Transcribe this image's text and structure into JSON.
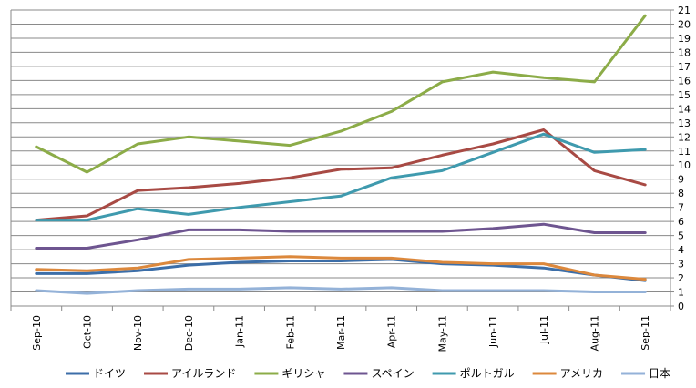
{
  "chart_data": {
    "type": "line",
    "title": "",
    "xlabel": "",
    "ylabel": "",
    "ylim": [
      0,
      21
    ],
    "y_ticks": [
      "0",
      "1",
      "2",
      "3",
      "4",
      "5",
      "6",
      "7",
      "8",
      "9",
      "10",
      "11",
      "12",
      "13",
      "14",
      "15",
      "16",
      "17",
      "18",
      "19",
      "20",
      "21"
    ],
    "y_axis_side": "right",
    "grid": true,
    "legend_position": "bottom",
    "categories": [
      "Sep-10",
      "Oct-10",
      "Nov-10",
      "Dec-10",
      "Jan-11",
      "Feb-11",
      "Mar-11",
      "Apr-11",
      "May-11",
      "Jun-11",
      "Jul-11",
      "Aug-11",
      "Sep-11"
    ],
    "series": [
      {
        "name": "ドイツ",
        "color": "#3c6ea8",
        "values": [
          2.3,
          2.3,
          2.5,
          2.9,
          3.1,
          3.2,
          3.2,
          3.3,
          3.0,
          2.9,
          2.7,
          2.2,
          1.8
        ]
      },
      {
        "name": "アイルランド",
        "color": "#a84a44",
        "values": [
          6.1,
          6.4,
          8.2,
          8.4,
          8.7,
          9.1,
          9.7,
          9.8,
          10.7,
          11.5,
          12.5,
          9.6,
          8.6
        ]
      },
      {
        "name": "ギリシャ",
        "color": "#8cac48",
        "values": [
          11.3,
          9.5,
          11.5,
          12.0,
          11.7,
          11.4,
          12.4,
          13.8,
          15.9,
          16.6,
          16.2,
          15.9,
          20.6
        ]
      },
      {
        "name": "スペイン",
        "color": "#6e5590",
        "values": [
          4.1,
          4.1,
          4.7,
          5.4,
          5.4,
          5.3,
          5.3,
          5.3,
          5.3,
          5.5,
          5.8,
          5.2,
          5.2
        ]
      },
      {
        "name": "ポルトガル",
        "color": "#3f9aae",
        "values": [
          6.1,
          6.1,
          6.9,
          6.5,
          7.0,
          7.4,
          7.8,
          9.1,
          9.6,
          10.9,
          12.2,
          10.9,
          11.1
        ]
      },
      {
        "name": "アメリカ",
        "color": "#dc883c",
        "values": [
          2.6,
          2.5,
          2.7,
          3.3,
          3.4,
          3.5,
          3.4,
          3.4,
          3.1,
          3.0,
          3.0,
          2.2,
          1.9
        ]
      },
      {
        "name": "日本",
        "color": "#94b2d8",
        "values": [
          1.1,
          0.9,
          1.1,
          1.2,
          1.2,
          1.3,
          1.2,
          1.3,
          1.1,
          1.1,
          1.1,
          1.0,
          1.0
        ]
      }
    ]
  },
  "style": {
    "gridline_color": "#8a8a8a",
    "axis_color": "#8a8a8a",
    "background": "#ffffff"
  }
}
